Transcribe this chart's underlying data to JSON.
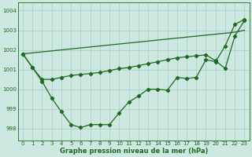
{
  "title": "Graphe pression niveau de la mer (hPa)",
  "background_color": "#cce8e0",
  "line_color": "#1e6b20",
  "grid_color": "#aaccc4",
  "ylim": [
    997.4,
    1004.4
  ],
  "yticks": [
    998,
    999,
    1000,
    1001,
    1002,
    1003,
    1004
  ],
  "xticks": [
    0,
    1,
    2,
    3,
    4,
    5,
    6,
    7,
    8,
    9,
    10,
    11,
    12,
    13,
    14,
    15,
    16,
    17,
    18,
    19,
    20,
    21,
    22,
    23
  ],
  "series_straight": [
    1001.8,
    1001.85,
    1001.9,
    1001.95,
    1002.0,
    1002.05,
    1002.1,
    1002.15,
    1002.2,
    1002.25,
    1002.3,
    1002.35,
    1002.4,
    1002.45,
    1002.5,
    1002.55,
    1002.6,
    1002.65,
    1002.7,
    1002.75,
    1002.8,
    1002.85,
    1002.9,
    1003.0
  ],
  "series_upper": [
    1001.8,
    1001.1,
    1000.5,
    1000.5,
    1000.6,
    1000.7,
    1000.75,
    1000.8,
    1000.85,
    1000.95,
    1001.05,
    1001.1,
    1001.2,
    1001.3,
    1001.4,
    1001.5,
    1001.6,
    1001.65,
    1001.7,
    1001.75,
    1001.45,
    1001.05,
    1002.7,
    1003.5
  ],
  "series_lower": [
    1001.8,
    1001.1,
    1000.4,
    999.55,
    998.85,
    998.2,
    998.05,
    998.2,
    998.2,
    998.2,
    998.8,
    999.35,
    999.65,
    1000.0,
    1000.0,
    999.95,
    1000.6,
    1000.55,
    1000.6,
    1001.5,
    1001.4,
    1002.2,
    1003.3,
    1003.55
  ],
  "marker": "D",
  "marker_size": 2.2,
  "linewidth": 0.9
}
